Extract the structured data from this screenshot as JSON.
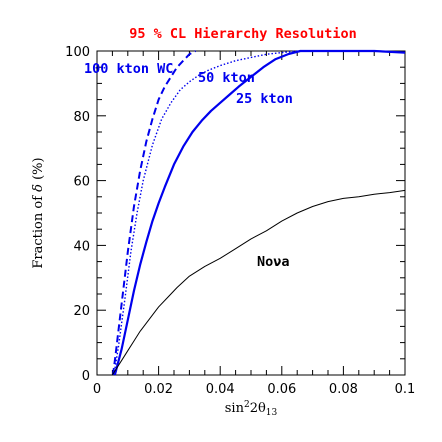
{
  "colors": {
    "title": "#ff0000",
    "wc_lines": "#0000ee",
    "nova_line": "#000000",
    "axes": "#000000"
  },
  "chart_data": {
    "type": "line",
    "title": "95 % CL Hierarchy Resolution",
    "xlabel_parts": {
      "main": "sin",
      "sup": "2",
      "mid": "2θ",
      "sub": "13"
    },
    "ylabel_parts": {
      "main": "Fraction of ",
      "sym": "δ",
      "unit": " (%)"
    },
    "xlim": [
      0,
      0.1
    ],
    "ylim": [
      0,
      100
    ],
    "x_ticks": [
      0,
      0.02,
      0.04,
      0.06,
      0.08,
      0.1
    ],
    "x_tick_labels": [
      "0",
      "0.02",
      "0.04",
      "0.06",
      "0.08",
      "0.1"
    ],
    "y_ticks": [
      0,
      20,
      40,
      60,
      80,
      100
    ],
    "y_tick_labels": [
      "0",
      "20",
      "40",
      "60",
      "80",
      "100"
    ],
    "x_minor_step": 0.005,
    "y_minor_step": 5,
    "grid": false,
    "series": [
      {
        "name": "100 kton WC",
        "style": "dashed",
        "x": [
          0.0052,
          0.006,
          0.008,
          0.01,
          0.012,
          0.014,
          0.016,
          0.018,
          0.02,
          0.022,
          0.024,
          0.026,
          0.028,
          0.03,
          0.032
        ],
        "y": [
          0,
          6,
          22,
          38,
          52,
          63,
          72,
          79,
          85,
          89,
          92,
          95,
          97,
          99,
          100
        ]
      },
      {
        "name": "50 kton",
        "style": "dotted",
        "x": [
          0.0055,
          0.007,
          0.009,
          0.011,
          0.013,
          0.015,
          0.018,
          0.021,
          0.024,
          0.027,
          0.03,
          0.033,
          0.036,
          0.04,
          0.045,
          0.05,
          0.055,
          0.06,
          0.065,
          0.07
        ],
        "y": [
          0,
          9,
          23,
          38,
          50,
          60,
          71,
          79,
          84,
          88,
          90.5,
          92.5,
          94,
          95.5,
          97,
          98,
          99,
          99.5,
          100,
          100
        ]
      },
      {
        "name": "25 kton",
        "style": "solid",
        "x": [
          0.0058,
          0.008,
          0.01,
          0.012,
          0.014,
          0.016,
          0.018,
          0.02,
          0.022,
          0.025,
          0.028,
          0.031,
          0.034,
          0.037,
          0.04,
          0.043,
          0.046,
          0.05,
          0.054,
          0.058,
          0.062,
          0.066,
          0.068,
          0.07,
          0.08,
          0.09,
          0.1
        ],
        "y": [
          0,
          8,
          17,
          26,
          34,
          41,
          47.5,
          53,
          58,
          65,
          70.5,
          75,
          78.5,
          81.5,
          84,
          86.5,
          89,
          92,
          95,
          97.5,
          99,
          100,
          100,
          100,
          100,
          100,
          99.5
        ]
      },
      {
        "name": "Noνa",
        "style": "solid-thin",
        "x": [
          0.005,
          0.006,
          0.008,
          0.01,
          0.012,
          0.014,
          0.016,
          0.018,
          0.02,
          0.023,
          0.026,
          0.03,
          0.035,
          0.04,
          0.045,
          0.05,
          0.055,
          0.06,
          0.065,
          0.07,
          0.075,
          0.08,
          0.085,
          0.09,
          0.095,
          0.1
        ],
        "y": [
          0,
          1.5,
          4.5,
          7.5,
          10.5,
          13.5,
          16,
          18.5,
          21,
          24,
          27,
          30.5,
          33.5,
          36,
          39,
          42,
          44.5,
          47.5,
          50,
          52,
          53.5,
          54.5,
          55,
          55.8,
          56.3,
          57
        ]
      }
    ],
    "annotations": {
      "wc100": "100 kton WC",
      "kton50": "50 kton",
      "kton25": "25 kton",
      "nova": "Noνa"
    }
  }
}
